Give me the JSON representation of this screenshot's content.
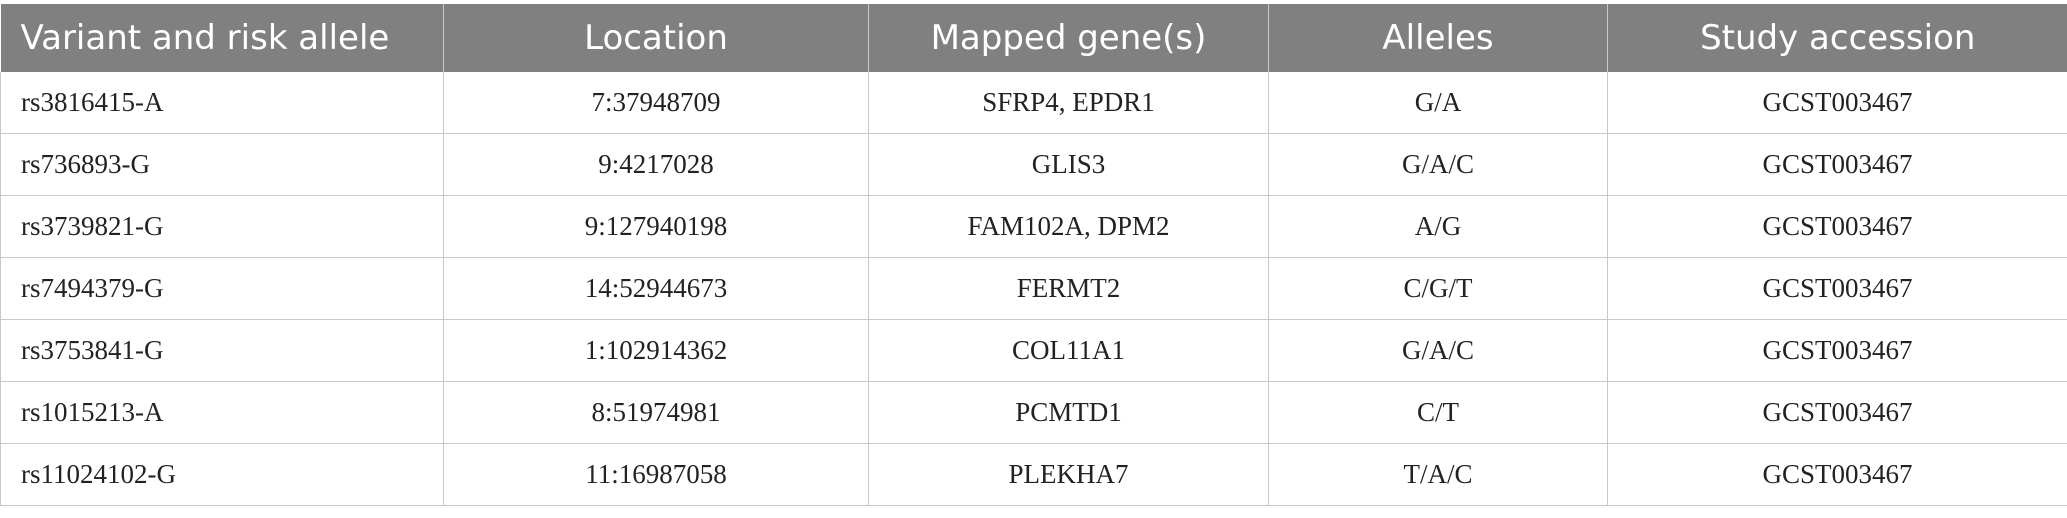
{
  "table": {
    "headers": [
      "Variant and risk allele",
      "Location",
      "Mapped gene(s)",
      "Alleles",
      "Study accession"
    ],
    "rows": [
      [
        "rs3816415-A",
        "7:37948709",
        "SFRP4, EPDR1",
        "G/A",
        "GCST003467"
      ],
      [
        "rs736893-G",
        "9:4217028",
        "GLIS3",
        "G/A/C",
        "GCST003467"
      ],
      [
        "rs3739821-G",
        "9:127940198",
        "FAM102A, DPM2",
        "A/G",
        "GCST003467"
      ],
      [
        "rs7494379-G",
        "14:52944673",
        "FERMT2",
        "C/G/T",
        "GCST003467"
      ],
      [
        "rs3753841-G",
        "1:102914362",
        "COL11A1",
        "G/A/C",
        "GCST003467"
      ],
      [
        "rs1015213-A",
        "8:51974981",
        "PCMTD1",
        "C/T",
        "GCST003467"
      ],
      [
        "rs11024102-G",
        "11:16987058",
        "PLEKHA7",
        "T/A/C",
        "GCST003467"
      ]
    ]
  },
  "colors": {
    "header_bg": "#7f807f",
    "header_text": "#ffffff",
    "grid_line": "#c9c9c9"
  }
}
